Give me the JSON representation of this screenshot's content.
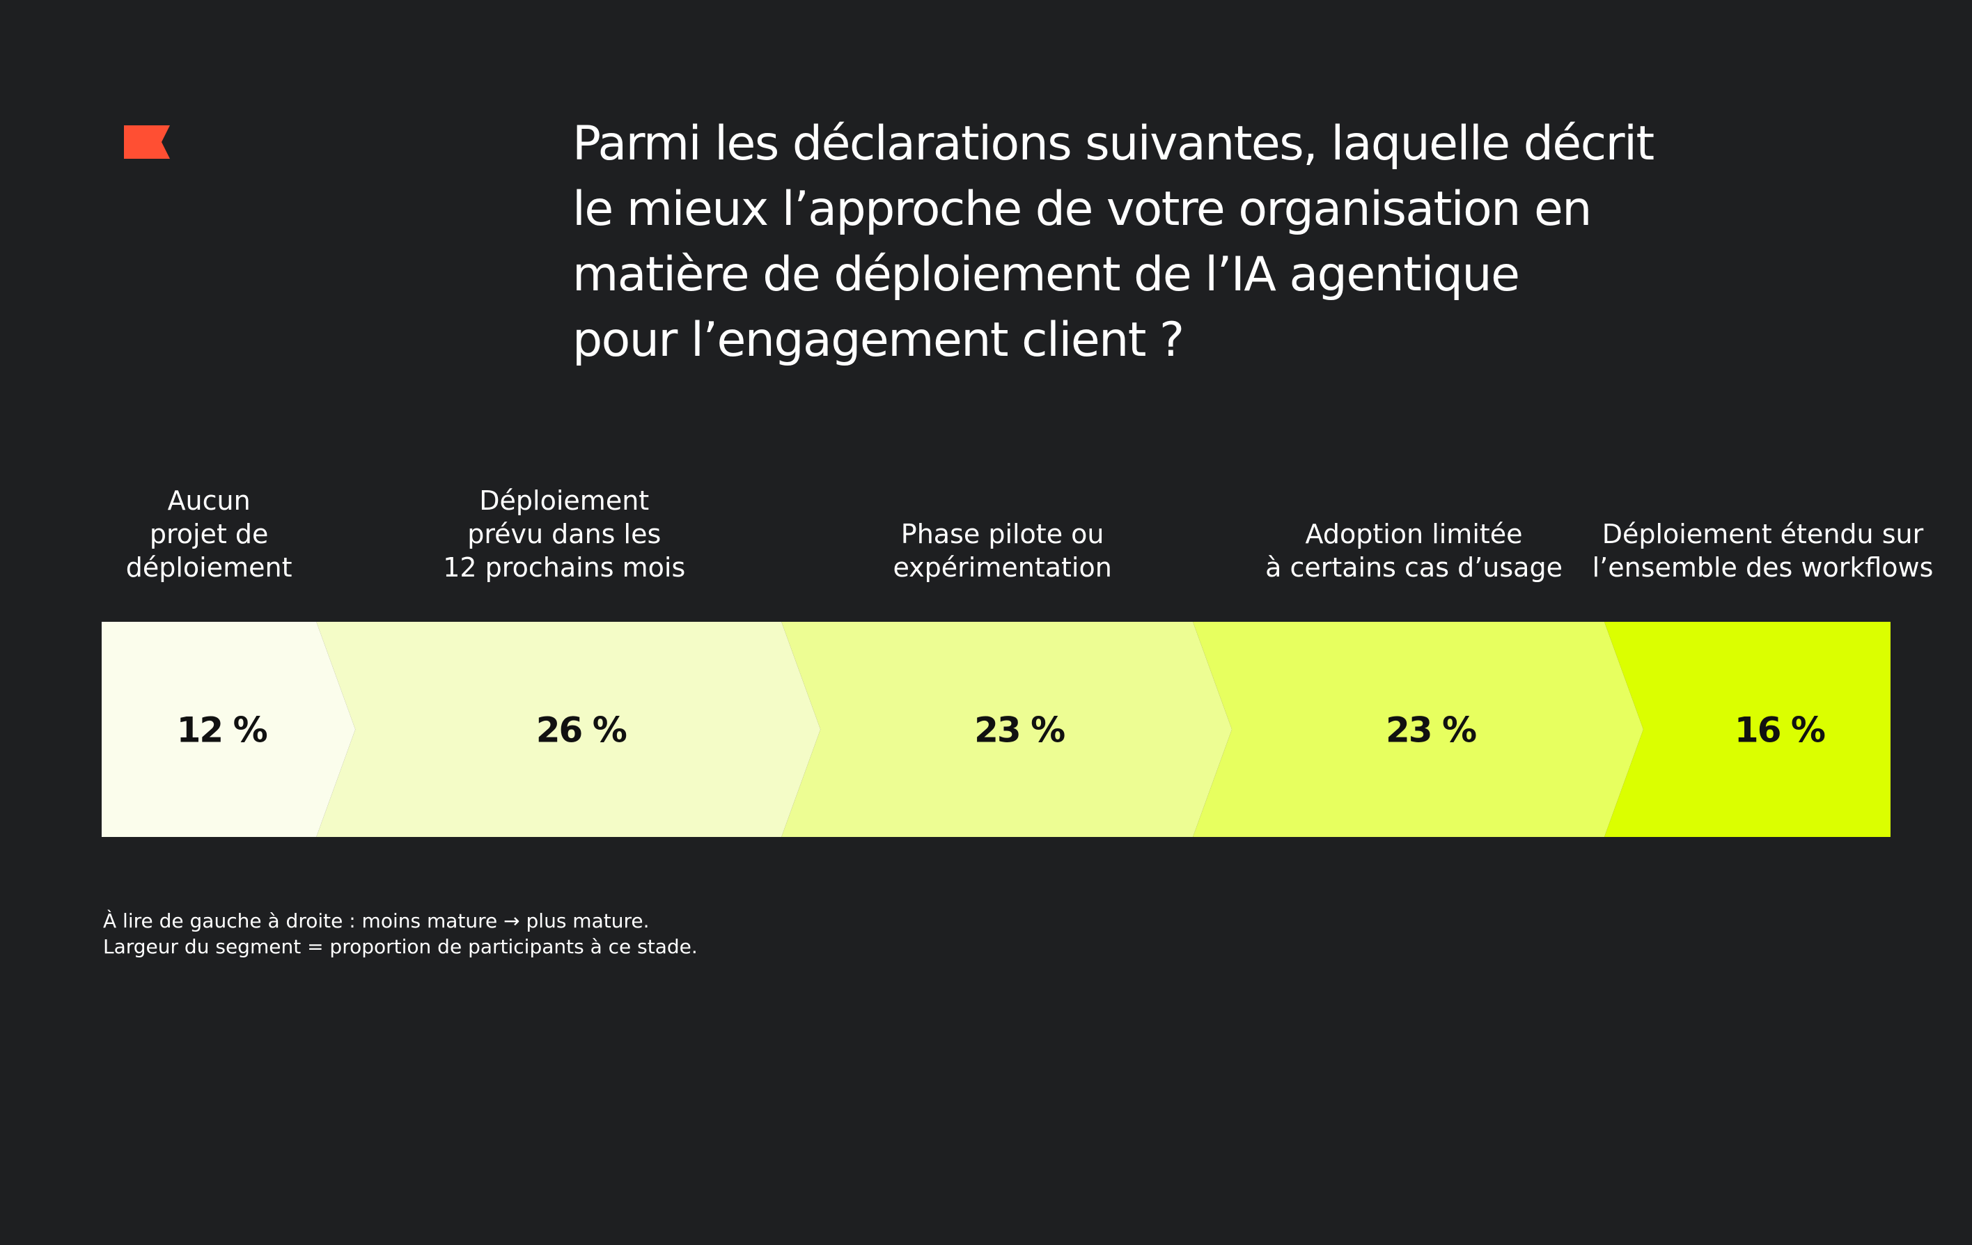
{
  "question": {
    "lines": [
      "Parmi les déclarations suivantes, laquelle décrit",
      "le mieux l’approche de votre organisation en",
      "matière de déploiement de l’IA agentique",
      "pour l’engagement client ?"
    ]
  },
  "logo": {
    "icon": "flag-icon",
    "color": "#ff4f33"
  },
  "chart_data": {
    "type": "bar",
    "orientation": "horizontal-stacked",
    "unit": "%",
    "total": 100,
    "categories": [
      [
        "Aucun",
        "projet de",
        "déploiement"
      ],
      [
        "Déploiement",
        "prévu dans les",
        "12 prochains mois"
      ],
      [
        "Phase pilote ou",
        "expérimentation"
      ],
      [
        "Adoption limitée",
        "à certains cas d’usage"
      ],
      [
        "Déploiement étendu sur",
        "l’ensemble des workflows"
      ]
    ],
    "values": [
      12,
      26,
      23,
      23,
      16
    ],
    "value_labels": [
      "12 %",
      "26 %",
      "23 %",
      "23 %",
      "16 %"
    ],
    "colors": [
      "#fbfdec",
      "#f4fcc7",
      "#edfd93",
      "#e7ff5f",
      "#dbff00"
    ]
  },
  "notes": [
    "À lire de gauche à droite : moins mature → plus mature.",
    "Largeur du segment = proportion de participants à ce stade."
  ]
}
